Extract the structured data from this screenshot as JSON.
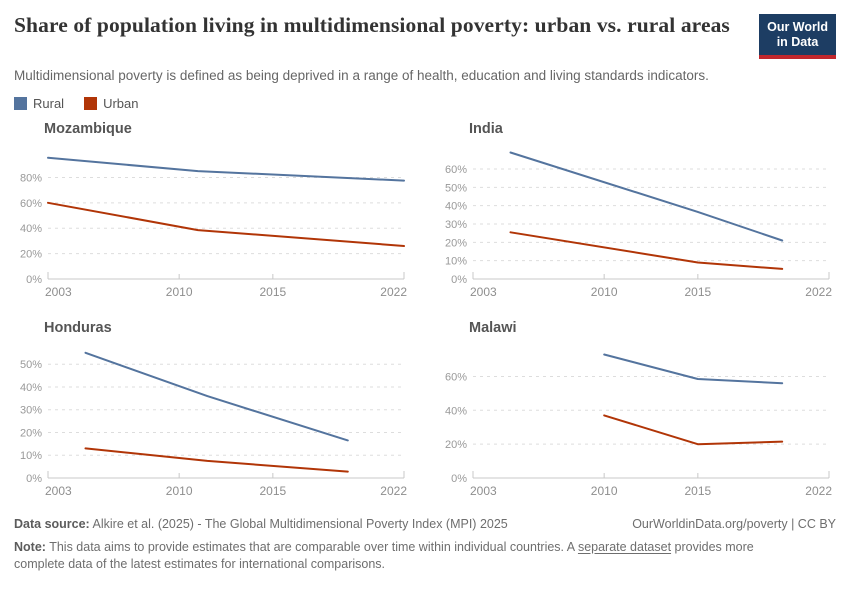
{
  "header": {
    "title": "Share of population living in multidimensional poverty: urban vs. rural areas",
    "subtitle": "Multidimensional poverty is defined as being deprived in a range of health, education and living standards indicators.",
    "logo": {
      "line1": "Our World",
      "line2": "in Data"
    }
  },
  "legend": {
    "items": [
      {
        "label": "Rural",
        "color": "#54749E"
      },
      {
        "label": "Urban",
        "color": "#B13507"
      }
    ]
  },
  "chart_data": [
    {
      "type": "line",
      "title": "Mozambique",
      "x_range": [
        2003,
        2022
      ],
      "x_ticks": [
        2003,
        2010,
        2015,
        2022
      ],
      "y_ticks": [
        0,
        20,
        40,
        60,
        80
      ],
      "y_max": 104,
      "series": [
        {
          "name": "Rural",
          "color": "#54749E",
          "x": [
            2003,
            2011,
            2022
          ],
          "values": [
            95.5,
            85,
            77.5
          ]
        },
        {
          "name": "Urban",
          "color": "#B13507",
          "x": [
            2003,
            2011,
            2022
          ],
          "values": [
            60,
            38.5,
            26
          ]
        }
      ]
    },
    {
      "type": "line",
      "title": "India",
      "x_range": [
        2003,
        2022
      ],
      "x_ticks": [
        2003,
        2010,
        2015,
        2022
      ],
      "y_ticks": [
        0,
        10,
        20,
        30,
        40,
        50,
        60
      ],
      "y_max": 72,
      "series": [
        {
          "name": "Rural",
          "color": "#54749E",
          "x": [
            2005,
            2015,
            2019.5
          ],
          "values": [
            69,
            36.6,
            21
          ]
        },
        {
          "name": "Urban",
          "color": "#B13507",
          "x": [
            2005,
            2015,
            2019.5
          ],
          "values": [
            25.5,
            9,
            5.5
          ]
        }
      ]
    },
    {
      "type": "line",
      "title": "Honduras",
      "x_range": [
        2003,
        2022
      ],
      "x_ticks": [
        2003,
        2010,
        2015,
        2022
      ],
      "y_ticks": [
        0,
        10,
        20,
        30,
        40,
        50
      ],
      "y_max": 58,
      "series": [
        {
          "name": "Rural",
          "color": "#54749E",
          "x": [
            2005,
            2011.5,
            2019
          ],
          "values": [
            55,
            36,
            16.5
          ]
        },
        {
          "name": "Urban",
          "color": "#B13507",
          "x": [
            2005,
            2011.5,
            2019
          ],
          "values": [
            13,
            7.5,
            2.8
          ]
        }
      ]
    },
    {
      "type": "line",
      "title": "Malawi",
      "x_range": [
        2003,
        2022
      ],
      "x_ticks": [
        2003,
        2010,
        2015,
        2022
      ],
      "y_ticks": [
        0,
        20,
        40,
        60
      ],
      "y_max": 78,
      "series": [
        {
          "name": "Rural",
          "color": "#54749E",
          "x": [
            2010,
            2015,
            2019.5
          ],
          "values": [
            73,
            58.5,
            56
          ]
        },
        {
          "name": "Urban",
          "color": "#B13507",
          "x": [
            2010,
            2015,
            2019.5
          ],
          "values": [
            37,
            20,
            21.5
          ]
        }
      ]
    }
  ],
  "footer": {
    "datasource_label": "Data source:",
    "datasource_text": " Alkire et al. (2025) - The Global Multidimensional Poverty Index (MPI) 2025",
    "credit": "OurWorldinData.org/poverty | CC BY",
    "note_label": "Note:",
    "note_before_link": " This data aims to provide estimates that are comparable over time within individual countries. A ",
    "note_link": "separate dataset",
    "note_after_link": " provides more complete data of the latest estimates for international comparisons."
  },
  "colors": {
    "rural": "#54749E",
    "urban": "#B13507",
    "logo_bg": "#1D3D63",
    "logo_accent": "#C1272D",
    "gridline": "#DDDDDD",
    "axis": "#C8C8C8",
    "tick_label": "#8E8E8E"
  }
}
